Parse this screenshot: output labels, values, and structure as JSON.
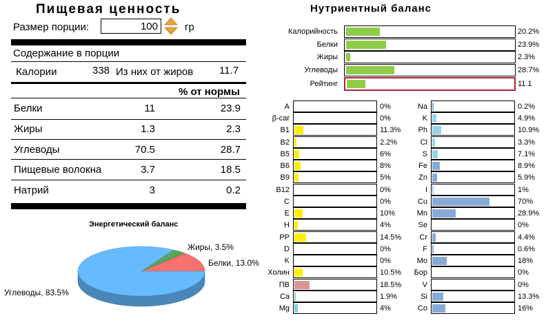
{
  "nutrition_facts": {
    "title": "Пищевая ценность",
    "portion_label": "Размер порции:",
    "portion_value": "100",
    "portion_unit": "гр",
    "per_portion": "Содержание в порции",
    "calories_label": "Калории",
    "calories_value": "338",
    "fat_calories_label": "Из них от жиров",
    "fat_calories_value": "11.7",
    "pct_header": "% от нормы",
    "rows": [
      {
        "label": "Белки",
        "value": "11",
        "pct": "23.9"
      },
      {
        "label": "Жиры",
        "value": "1.3",
        "pct": "2.3"
      },
      {
        "label": "Углеводы",
        "value": "70.5",
        "pct": "28.7"
      },
      {
        "label": "Пищевые волокна",
        "value": "3.7",
        "pct": "18.5"
      },
      {
        "label": "Натрий",
        "value": "3",
        "pct": "0.2"
      }
    ]
  },
  "energy_pie": {
    "title": "Энергетический баланс",
    "slices": [
      {
        "label": "Углеводы, 83.5%",
        "value": 83.5,
        "color": "#66bbff"
      },
      {
        "label": "Белки, 13.0%",
        "value": 13.0,
        "color": "#f87070"
      },
      {
        "label": "Жиры, 3.5%",
        "value": 3.5,
        "color": "#5aa55a"
      }
    ]
  },
  "nutrient_balance": {
    "title": "Нутриентный баланс",
    "summary": [
      {
        "label": "Калорийность",
        "value": "20.2%",
        "pct": 20.2
      },
      {
        "label": "Белки",
        "value": "23.9%",
        "pct": 23.9
      },
      {
        "label": "Жиры",
        "value": "2.3%",
        "pct": 2.3
      },
      {
        "label": "Углеводы",
        "value": "28.7%",
        "pct": 28.7
      }
    ],
    "rating": {
      "label": "Рейтинг",
      "value": "11.1",
      "pct": 11.1
    },
    "vitamins": [
      {
        "label": "A",
        "value": "0%",
        "pct": 0
      },
      {
        "label": "β-car",
        "value": "0%",
        "pct": 0
      },
      {
        "label": "B1",
        "value": "11.3%",
        "pct": 11.3
      },
      {
        "label": "B2",
        "value": "2.2%",
        "pct": 2.2
      },
      {
        "label": "B5",
        "value": "6%",
        "pct": 6
      },
      {
        "label": "B6",
        "value": "8%",
        "pct": 8
      },
      {
        "label": "B9",
        "value": "5%",
        "pct": 5
      },
      {
        "label": "B12",
        "value": "0%",
        "pct": 0
      },
      {
        "label": "C",
        "value": "0%",
        "pct": 0
      },
      {
        "label": "E",
        "value": "10%",
        "pct": 10
      },
      {
        "label": "H",
        "value": "4%",
        "pct": 4
      },
      {
        "label": "PP",
        "value": "14.5%",
        "pct": 14.5
      },
      {
        "label": "D",
        "value": "0%",
        "pct": 0
      },
      {
        "label": "K",
        "value": "0%",
        "pct": 0
      },
      {
        "label": "Холин",
        "value": "10.5%",
        "pct": 10.5
      },
      {
        "label": "ПВ",
        "value": "18.5%",
        "pct": 18.5
      },
      {
        "label": "Ca",
        "value": "1.9%",
        "pct": 1.9
      },
      {
        "label": "Mg",
        "value": "4%",
        "pct": 4
      }
    ],
    "minerals": [
      {
        "label": "Na",
        "value": "0.2%",
        "pct": 0.2
      },
      {
        "label": "K",
        "value": "4.9%",
        "pct": 4.9
      },
      {
        "label": "Ph",
        "value": "10.9%",
        "pct": 10.9
      },
      {
        "label": "Cl",
        "value": "3.3%",
        "pct": 3.3
      },
      {
        "label": "S",
        "value": "7.1%",
        "pct": 7.1
      },
      {
        "label": "Fe",
        "value": "8.9%",
        "pct": 8.9
      },
      {
        "label": "Zn",
        "value": "5.9%",
        "pct": 5.9
      },
      {
        "label": "I",
        "value": "1%",
        "pct": 1
      },
      {
        "label": "Cu",
        "value": "70%",
        "pct": 70
      },
      {
        "label": "Mn",
        "value": "28.9%",
        "pct": 28.9
      },
      {
        "label": "Se",
        "value": "0%",
        "pct": 0
      },
      {
        "label": "Cr",
        "value": "4.4%",
        "pct": 4.4
      },
      {
        "label": "F",
        "value": "0.6%",
        "pct": 0.6
      },
      {
        "label": "Mo",
        "value": "18%",
        "pct": 18
      },
      {
        "label": "Бор",
        "value": "0%",
        "pct": 0
      },
      {
        "label": "V",
        "value": "0%",
        "pct": 0
      },
      {
        "label": "Si",
        "value": "13.3%",
        "pct": 13.3
      },
      {
        "label": "Co",
        "value": "16%",
        "pct": 16
      }
    ],
    "colors": {
      "summary": "#8fcc4a",
      "vitamin": "#ffee00",
      "fiber": "#d99494",
      "mineral_ca_mg": "#88ccdd",
      "mineral": "#88aad6",
      "mineral_light": "#99d4e6",
      "rating_border": "#aa2233"
    }
  }
}
